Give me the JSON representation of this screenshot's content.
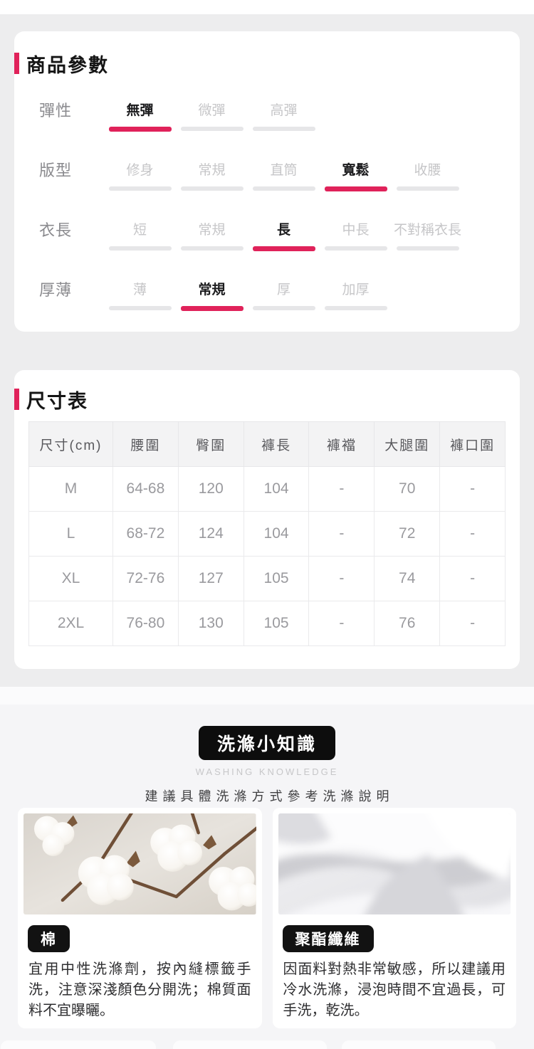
{
  "theme": {
    "accent_color": "#e0225a",
    "card_background": "#ffffff",
    "page_background": "#ededee",
    "washing_background": "#f5f5f7"
  },
  "params_section": {
    "title": "商品參數",
    "rows": [
      {
        "label": "彈性",
        "options": [
          {
            "label": "無彈",
            "selected": true
          },
          {
            "label": "微彈",
            "selected": false
          },
          {
            "label": "高彈",
            "selected": false
          }
        ]
      },
      {
        "label": "版型",
        "options": [
          {
            "label": "修身",
            "selected": false
          },
          {
            "label": "常規",
            "selected": false
          },
          {
            "label": "直筒",
            "selected": false
          },
          {
            "label": "寬鬆",
            "selected": true
          },
          {
            "label": "收腰",
            "selected": false
          }
        ]
      },
      {
        "label": "衣長",
        "options": [
          {
            "label": "短",
            "selected": false
          },
          {
            "label": "常規",
            "selected": false
          },
          {
            "label": "長",
            "selected": true
          },
          {
            "label": "中長",
            "selected": false
          },
          {
            "label": "不對稱衣長",
            "selected": false
          }
        ]
      },
      {
        "label": "厚薄",
        "options": [
          {
            "label": "薄",
            "selected": false
          },
          {
            "label": "常規",
            "selected": true
          },
          {
            "label": "厚",
            "selected": false
          },
          {
            "label": "加厚",
            "selected": false
          }
        ]
      }
    ]
  },
  "size_section": {
    "title": "尺寸表",
    "table": {
      "headers": [
        "尺寸(cm)",
        "腰圍",
        "臀圍",
        "褲長",
        "褲襠",
        "大腿圍",
        "褲口圍"
      ],
      "rows": [
        [
          "M",
          "64-68",
          "120",
          "104",
          "-",
          "70",
          "-"
        ],
        [
          "L",
          "68-72",
          "124",
          "104",
          "-",
          "72",
          "-"
        ],
        [
          "XL",
          "72-76",
          "127",
          "105",
          "-",
          "74",
          "-"
        ],
        [
          "2XL",
          "76-80",
          "130",
          "105",
          "-",
          "76",
          "-"
        ]
      ]
    }
  },
  "washing_section": {
    "badge": "洗滌小知識",
    "subtitle_en": "WASHING KNOWLEDGE",
    "subtitle_zh": "建議具體洗滌方式參考洗滌說明",
    "cards": [
      {
        "tag": "棉",
        "photo": "cotton-plant-photo",
        "text": "宜用中性洗滌劑，按內縫標籤手洗，注意深淺顏色分開洗；棉質面料不宜曝曬。"
      },
      {
        "tag": "聚酯纖維",
        "photo": "white-fabric-photo",
        "text": "因面料對熱非常敏感，所以建議用冷水洗滌，浸泡時間不宜過長，可手洗，乾洗。"
      }
    ]
  }
}
